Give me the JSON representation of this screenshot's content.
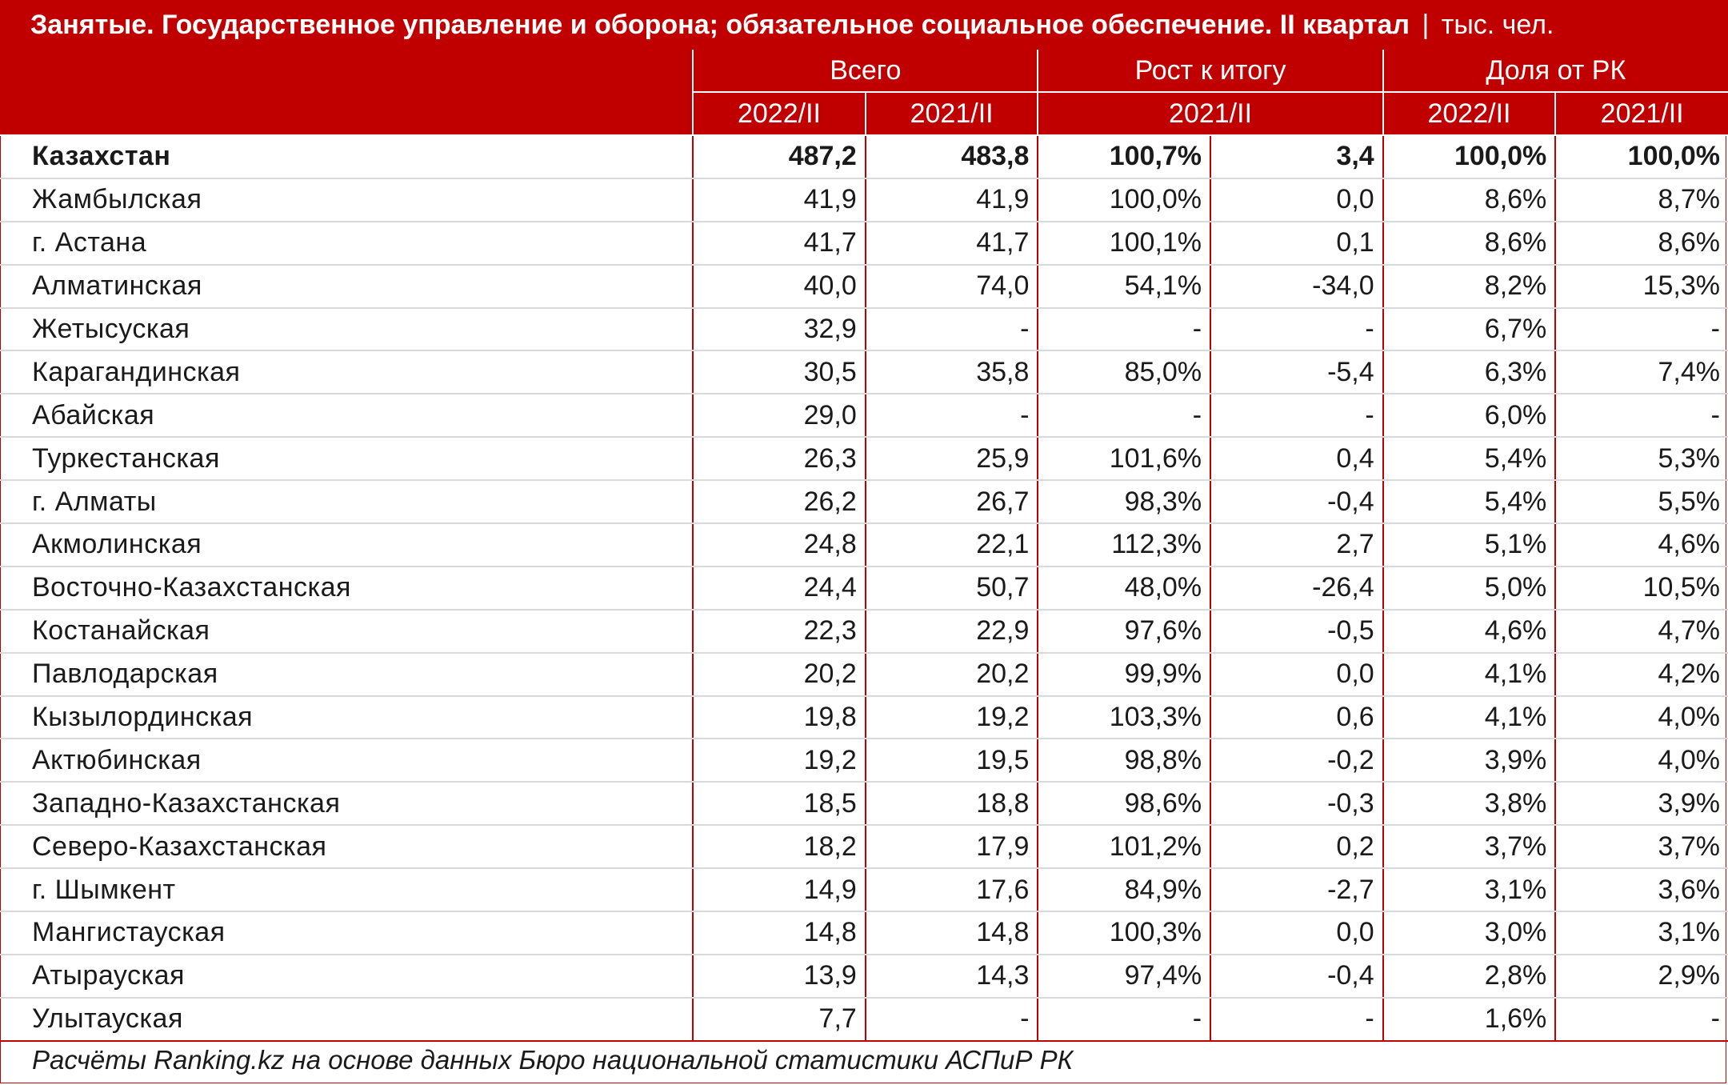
{
  "title": {
    "main": "Занятые. Государственное управление и оборона; обязательное социальное обеспечение. II квартал",
    "separator": "|",
    "unit": "тыс. чел."
  },
  "header": {
    "group_total": "Всего",
    "group_growth": "Рост к итогу",
    "group_share": "Доля от РК",
    "sub_total_a": "2022/II",
    "sub_total_b": "2021/II",
    "sub_growth": "2021/II",
    "sub_share_a": "2022/II",
    "sub_share_b": "2021/II"
  },
  "rows": [
    {
      "region": "Казахстан",
      "v2022": "487,2",
      "v2021": "483,8",
      "growth_pct": "100,7%",
      "growth_abs": "3,4",
      "share2022": "100,0%",
      "share2021": "100,0%"
    },
    {
      "region": "Жамбылская",
      "v2022": "41,9",
      "v2021": "41,9",
      "growth_pct": "100,0%",
      "growth_abs": "0,0",
      "share2022": "8,6%",
      "share2021": "8,7%"
    },
    {
      "region": "г. Астана",
      "v2022": "41,7",
      "v2021": "41,7",
      "growth_pct": "100,1%",
      "growth_abs": "0,1",
      "share2022": "8,6%",
      "share2021": "8,6%"
    },
    {
      "region": "Алматинская",
      "v2022": "40,0",
      "v2021": "74,0",
      "growth_pct": "54,1%",
      "growth_abs": "-34,0",
      "share2022": "8,2%",
      "share2021": "15,3%"
    },
    {
      "region": "Жетысуская",
      "v2022": "32,9",
      "v2021": "-",
      "growth_pct": "-",
      "growth_abs": "-",
      "share2022": "6,7%",
      "share2021": "-"
    },
    {
      "region": "Карагандинская",
      "v2022": "30,5",
      "v2021": "35,8",
      "growth_pct": "85,0%",
      "growth_abs": "-5,4",
      "share2022": "6,3%",
      "share2021": "7,4%"
    },
    {
      "region": "Абайская",
      "v2022": "29,0",
      "v2021": "-",
      "growth_pct": "-",
      "growth_abs": "-",
      "share2022": "6,0%",
      "share2021": "-"
    },
    {
      "region": "Туркестанская",
      "v2022": "26,3",
      "v2021": "25,9",
      "growth_pct": "101,6%",
      "growth_abs": "0,4",
      "share2022": "5,4%",
      "share2021": "5,3%"
    },
    {
      "region": "г. Алматы",
      "v2022": "26,2",
      "v2021": "26,7",
      "growth_pct": "98,3%",
      "growth_abs": "-0,4",
      "share2022": "5,4%",
      "share2021": "5,5%"
    },
    {
      "region": "Акмолинская",
      "v2022": "24,8",
      "v2021": "22,1",
      "growth_pct": "112,3%",
      "growth_abs": "2,7",
      "share2022": "5,1%",
      "share2021": "4,6%"
    },
    {
      "region": "Восточно-Казахстанская",
      "v2022": "24,4",
      "v2021": "50,7",
      "growth_pct": "48,0%",
      "growth_abs": "-26,4",
      "share2022": "5,0%",
      "share2021": "10,5%"
    },
    {
      "region": "Костанайская",
      "v2022": "22,3",
      "v2021": "22,9",
      "growth_pct": "97,6%",
      "growth_abs": "-0,5",
      "share2022": "4,6%",
      "share2021": "4,7%"
    },
    {
      "region": "Павлодарская",
      "v2022": "20,2",
      "v2021": "20,2",
      "growth_pct": "99,9%",
      "growth_abs": "0,0",
      "share2022": "4,1%",
      "share2021": "4,2%"
    },
    {
      "region": "Кызылординская",
      "v2022": "19,8",
      "v2021": "19,2",
      "growth_pct": "103,3%",
      "growth_abs": "0,6",
      "share2022": "4,1%",
      "share2021": "4,0%"
    },
    {
      "region": "Актюбинская",
      "v2022": "19,2",
      "v2021": "19,5",
      "growth_pct": "98,8%",
      "growth_abs": "-0,2",
      "share2022": "3,9%",
      "share2021": "4,0%"
    },
    {
      "region": "Западно-Казахстанская",
      "v2022": "18,5",
      "v2021": "18,8",
      "growth_pct": "98,6%",
      "growth_abs": "-0,3",
      "share2022": "3,8%",
      "share2021": "3,9%"
    },
    {
      "region": "Северо-Казахстанская",
      "v2022": "18,2",
      "v2021": "17,9",
      "growth_pct": "101,2%",
      "growth_abs": "0,2",
      "share2022": "3,7%",
      "share2021": "3,7%"
    },
    {
      "region": "г. Шымкент",
      "v2022": "14,9",
      "v2021": "17,6",
      "growth_pct": "84,9%",
      "growth_abs": "-2,7",
      "share2022": "3,1%",
      "share2021": "3,6%"
    },
    {
      "region": "Мангистауская",
      "v2022": "14,8",
      "v2021": "14,8",
      "growth_pct": "100,3%",
      "growth_abs": "0,0",
      "share2022": "3,0%",
      "share2021": "3,1%"
    },
    {
      "region": "Атырауская",
      "v2022": "13,9",
      "v2021": "14,3",
      "growth_pct": "97,4%",
      "growth_abs": "-0,4",
      "share2022": "2,8%",
      "share2021": "2,9%"
    },
    {
      "region": "Улытауская",
      "v2022": "7,7",
      "v2021": "-",
      "growth_pct": "-",
      "growth_abs": "-",
      "share2022": "1,6%",
      "share2021": "-"
    }
  ],
  "source": "Расчёты Ranking.kz на основе данных Бюро национальной статистики АСПиР РК",
  "colors": {
    "header_bg": "#c00000",
    "header_text": "#ffffff",
    "grid_line": "#d9d9d9"
  }
}
